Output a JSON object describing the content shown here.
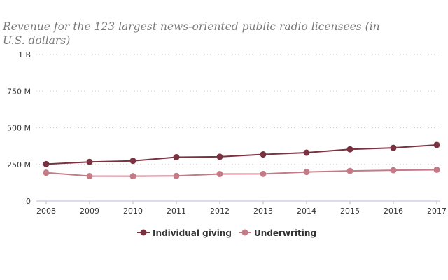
{
  "chart_data": {
    "type": "line",
    "title": "Revenue for the 123 largest news-oriented public radio licensees (in U.S. dollars)",
    "x": [
      "2008",
      "2009",
      "2010",
      "2011",
      "2012",
      "2013",
      "2014",
      "2015",
      "2016",
      "2017"
    ],
    "y_ticks": [
      {
        "value": 0,
        "label": "0"
      },
      {
        "value": 250,
        "label": "250 M"
      },
      {
        "value": 500,
        "label": "500 M"
      },
      {
        "value": 750,
        "label": "750 M"
      },
      {
        "value": 1000,
        "label": "1 B"
      }
    ],
    "ylim": [
      0,
      1000
    ],
    "y_unit": "millions of U.S. dollars",
    "grid": true,
    "legend_position": "bottom-center",
    "series": [
      {
        "name": "Individual giving",
        "color": "#7a3241",
        "values": [
          252,
          267,
          274,
          299,
          302,
          318,
          330,
          353,
          363,
          383
        ]
      },
      {
        "name": "Underwriting",
        "color": "#c57b86",
        "values": [
          193,
          170,
          169,
          171,
          184,
          185,
          198,
          205,
          210,
          213
        ]
      }
    ]
  }
}
